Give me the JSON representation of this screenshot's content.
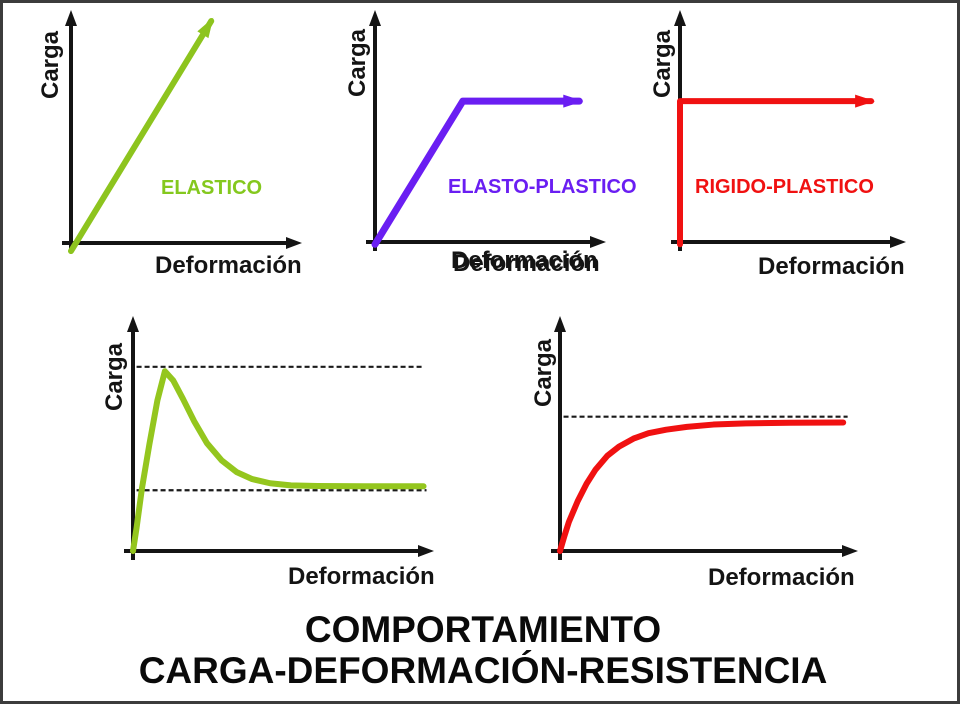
{
  "figure": {
    "title_line1": "COMPORTAMIENTO",
    "title_line2": "CARGA-DEFORMACIÓN-RESISTENCIA",
    "background_color": "#ffffff",
    "border_color": "#3c3c3c",
    "axis_color": "#141414",
    "dash_color": "#1a1a1a"
  },
  "charts": [
    {
      "name": "elastico",
      "label": "ELASTICO",
      "label_color": "#84c81e",
      "ylabel": "Carga",
      "xlabel": "Deformación",
      "type": "line",
      "dashed_lines": [],
      "curve": {
        "color": "#8dc41e",
        "width": 6,
        "arrow_end": true,
        "points": [
          [
            0,
            -0.035
          ],
          [
            0.615,
            0.965
          ]
        ]
      }
    },
    {
      "name": "elasto-plastico",
      "label": "ELASTO-PLASTICO",
      "label_color": "#6a1ef2",
      "ylabel": "Carga",
      "xlabel": "Deformación",
      "type": "line",
      "dashed_lines": [],
      "curve": {
        "color": "#6a1ef2",
        "width": 7,
        "arrow_end": true,
        "points": [
          [
            0,
            -0.01
          ],
          [
            0.385,
            0.615
          ],
          [
            0.896,
            0.615
          ]
        ]
      }
    },
    {
      "name": "rigido-plastico",
      "label": "RIGIDO-PLASTICO",
      "label_color": "#f01111",
      "ylabel": "Carga",
      "xlabel": "Deformación",
      "type": "line",
      "dashed_lines": [],
      "curve": {
        "color": "#f01111",
        "width": 6,
        "arrow_end": true,
        "points": [
          [
            0,
            -0.01
          ],
          [
            0,
            0.615
          ],
          [
            0.857,
            0.615
          ]
        ]
      }
    },
    {
      "name": "peak-softening-curve",
      "label": "",
      "label_color": "#141414",
      "ylabel": "Carga",
      "xlabel": "Deformación",
      "type": "line",
      "dashed_lines": [
        {
          "y": 0.794,
          "x1": 0.012,
          "x2": 0.972
        },
        {
          "y": 0.262,
          "x1": 0.012,
          "x2": 0.985
        }
      ],
      "curve": {
        "color": "#94c61e",
        "width": 6,
        "arrow_end": false,
        "points": [
          [
            0,
            0
          ],
          [
            0.012,
            0.1
          ],
          [
            0.03,
            0.27
          ],
          [
            0.055,
            0.46
          ],
          [
            0.082,
            0.65
          ],
          [
            0.107,
            0.775
          ],
          [
            0.135,
            0.735
          ],
          [
            0.168,
            0.655
          ],
          [
            0.205,
            0.56
          ],
          [
            0.248,
            0.465
          ],
          [
            0.298,
            0.39
          ],
          [
            0.348,
            0.34
          ],
          [
            0.4,
            0.31
          ],
          [
            0.46,
            0.292
          ],
          [
            0.53,
            0.283
          ],
          [
            0.62,
            0.28
          ],
          [
            0.78,
            0.279
          ],
          [
            0.975,
            0.279
          ]
        ]
      }
    },
    {
      "name": "asymptotic-curve",
      "label": "",
      "label_color": "#141414",
      "ylabel": "Carga",
      "xlabel": "Deformación",
      "type": "line",
      "dashed_lines": [
        {
          "y": 0.579,
          "x1": 0.012,
          "x2": 0.975
        }
      ],
      "curve": {
        "color": "#f01111",
        "width": 6,
        "arrow_end": false,
        "points": [
          [
            0,
            0
          ],
          [
            0.015,
            0.065
          ],
          [
            0.03,
            0.125
          ],
          [
            0.06,
            0.215
          ],
          [
            0.09,
            0.29
          ],
          [
            0.12,
            0.35
          ],
          [
            0.16,
            0.41
          ],
          [
            0.2,
            0.45
          ],
          [
            0.25,
            0.485
          ],
          [
            0.3,
            0.508
          ],
          [
            0.36,
            0.523
          ],
          [
            0.43,
            0.535
          ],
          [
            0.52,
            0.545
          ],
          [
            0.63,
            0.55
          ],
          [
            0.78,
            0.553
          ],
          [
            0.96,
            0.554
          ]
        ]
      }
    }
  ]
}
